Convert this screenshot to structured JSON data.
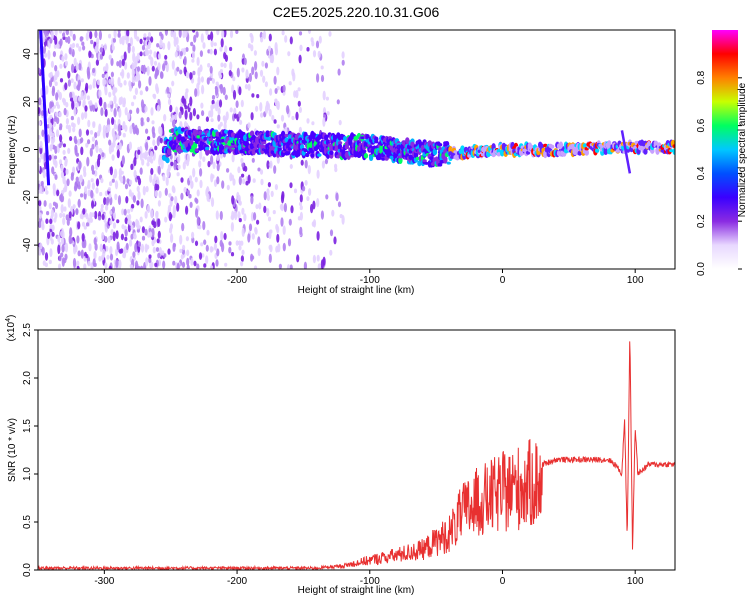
{
  "title": "C2E5.2025.220.10.31.G06",
  "chart_data": [
    {
      "type": "heatmap",
      "xlabel": "Height of straight line (km)",
      "ylabel": "Frequency (Hz)",
      "xlim": [
        -350,
        130
      ],
      "ylim": [
        -50,
        50
      ],
      "xticks": [
        -300,
        -200,
        -100,
        0,
        100
      ],
      "yticks": [
        -40,
        -20,
        0,
        20,
        40
      ],
      "colorbar": {
        "label": "Normalized spectral amplitude",
        "range": [
          0,
          1
        ],
        "ticks": [
          "0.0",
          "0.2",
          "0.4",
          "0.6",
          "0.8"
        ],
        "colormap": [
          "#ffffff",
          "#e8d8ff",
          "#8a2be2",
          "#3a00ff",
          "#0050ff",
          "#00c8ff",
          "#00ff60",
          "#c8ff00",
          "#ff8000",
          "#ff0000",
          "#ff00ff"
        ]
      },
      "signal_track_hz": [
        [
          -250,
          4
        ],
        [
          -200,
          3
        ],
        [
          -150,
          2
        ],
        [
          -100,
          1
        ],
        [
          -50,
          -2
        ],
        [
          0,
          0
        ],
        [
          50,
          0
        ],
        [
          100,
          1
        ],
        [
          130,
          1
        ]
      ]
    },
    {
      "type": "line",
      "xlabel": "Height of straight line (km)",
      "ylabel": "SNR (10 * v/v)",
      "y_scale_label": "(x10",
      "y_scale_exponent": "4",
      "xlim": [
        -350,
        130
      ],
      "ylim": [
        0,
        2.5
      ],
      "xticks": [
        -300,
        -200,
        -100,
        0,
        100
      ],
      "yticks": [
        "0.0",
        "0.5",
        "1.0",
        "1.5",
        "2.0",
        "2.5"
      ],
      "line_color": "#e83030",
      "envelope": {
        "x": [
          -350,
          -140,
          -120,
          -100,
          -80,
          -60,
          -40,
          -30,
          -20,
          -10,
          0,
          10,
          20,
          30,
          40,
          60,
          80,
          85,
          90,
          92,
          94,
          96,
          98,
          100,
          102,
          110,
          130
        ],
        "y": [
          0.02,
          0.02,
          0.05,
          0.12,
          0.18,
          0.25,
          0.45,
          0.7,
          0.82,
          0.88,
          0.95,
          1.0,
          1.05,
          1.1,
          1.15,
          1.15,
          1.15,
          1.1,
          1.0,
          1.6,
          0.3,
          2.5,
          0.2,
          1.5,
          1.0,
          1.1,
          1.1
        ]
      }
    }
  ]
}
